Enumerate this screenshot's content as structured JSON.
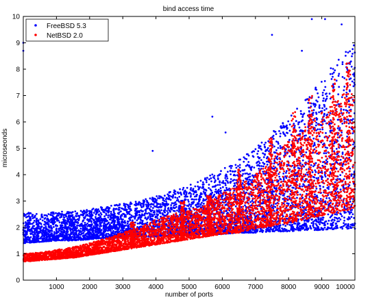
{
  "chart_data": {
    "type": "scatter",
    "title": "bind access time",
    "xlabel": "number of ports",
    "ylabel": "microseonds",
    "xlim": [
      0,
      10000
    ],
    "ylim": [
      0,
      10
    ],
    "xticks": [
      1000,
      2000,
      3000,
      4000,
      5000,
      6000,
      7000,
      8000,
      9000,
      10000
    ],
    "yticks": [
      0,
      1,
      2,
      3,
      4,
      5,
      6,
      7,
      8,
      9,
      10
    ],
    "grid": false,
    "legend_position": "top-left",
    "series": [
      {
        "name": "FreeBSD 5.3",
        "color": "#0000ff",
        "marker": "dot",
        "x": [
          0,
          500,
          1000,
          1500,
          2000,
          2500,
          3000,
          3500,
          4000,
          4500,
          5000,
          5500,
          6000,
          6500,
          7000,
          7500,
          8000,
          8500,
          9000,
          9500,
          10000
        ],
        "y_low": [
          1.4,
          1.45,
          1.5,
          1.5,
          1.55,
          1.6,
          1.6,
          1.65,
          1.65,
          1.7,
          1.7,
          1.75,
          1.75,
          1.8,
          1.8,
          1.85,
          1.85,
          1.9,
          1.9,
          1.95,
          1.95
        ],
        "y_high": [
          2.6,
          2.5,
          2.6,
          2.6,
          2.7,
          2.8,
          2.9,
          3.0,
          3.2,
          3.4,
          3.6,
          3.9,
          4.2,
          4.6,
          5.0,
          5.6,
          6.2,
          6.9,
          7.6,
          8.4,
          9.0
        ],
        "outliers": [
          [
            0,
            8.7
          ],
          [
            0,
            9.0
          ],
          [
            5700,
            6.2
          ],
          [
            7500,
            9.3
          ],
          [
            8700,
            9.9
          ],
          [
            9100,
            9.9
          ],
          [
            9600,
            9.7
          ],
          [
            6100,
            5.6
          ],
          [
            3900,
            4.9
          ],
          [
            8400,
            8.7
          ]
        ]
      },
      {
        "name": "NetBSD 2.0",
        "color": "#ff0000",
        "marker": "dot",
        "x": [
          0,
          500,
          1000,
          1500,
          2000,
          2500,
          3000,
          3500,
          4000,
          4500,
          5000,
          5500,
          6000,
          6500,
          7000,
          7500,
          8000,
          8500,
          9000,
          9500,
          10000
        ],
        "y_low": [
          0.7,
          0.75,
          0.8,
          0.85,
          0.95,
          1.05,
          1.15,
          1.25,
          1.35,
          1.45,
          1.55,
          1.65,
          1.75,
          1.8,
          1.95,
          2.05,
          2.15,
          2.3,
          2.45,
          2.55,
          2.7
        ],
        "y_high": [
          1.0,
          1.05,
          1.15,
          1.25,
          1.4,
          1.6,
          1.8,
          2.0,
          2.3,
          2.5,
          2.7,
          2.9,
          3.3,
          3.6,
          4.0,
          4.6,
          5.3,
          5.8,
          6.4,
          7.0,
          7.4
        ],
        "spikes": [
          [
            6500,
            4.2
          ],
          [
            7450,
            5.4
          ],
          [
            8150,
            6.4
          ],
          [
            8650,
            7.0
          ],
          [
            9350,
            7.7
          ],
          [
            9800,
            8.3
          ],
          [
            5600,
            3.2
          ],
          [
            4800,
            3.0
          ],
          [
            3300,
            2.2
          ]
        ]
      }
    ]
  }
}
